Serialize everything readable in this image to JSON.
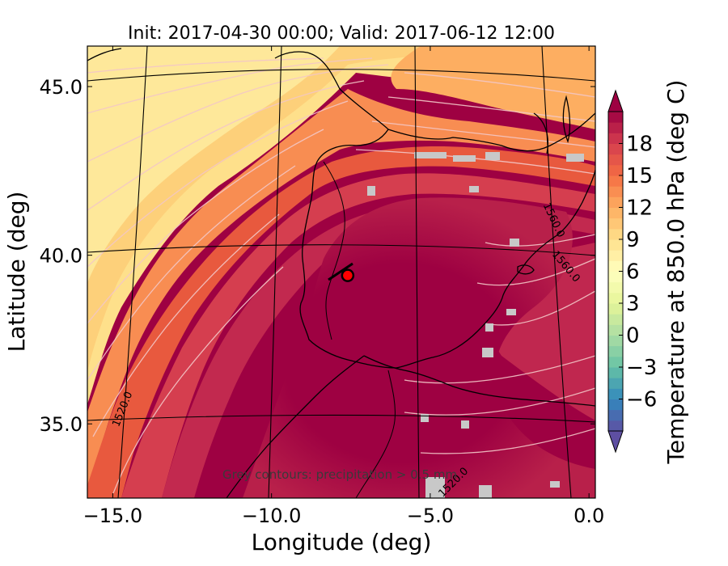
{
  "chart_data": {
    "type": "heatmap",
    "title": "Init: 2017-04-30 00:00; Valid: 2017-06-12 12:00",
    "xlabel": "Longitude (deg)",
    "ylabel": "Latitude (deg)",
    "xlim": [
      -15.8,
      0.2
    ],
    "ylim": [
      32.8,
      46.2
    ],
    "xticks": [
      {
        "value": -15.0,
        "label": "−15.0"
      },
      {
        "value": -10.0,
        "label": "−10.0"
      },
      {
        "value": -5.0,
        "label": "−5.0"
      },
      {
        "value": 0.0,
        "label": "0.0"
      }
    ],
    "yticks": [
      {
        "value": 35.0,
        "label": "35.0"
      },
      {
        "value": 40.0,
        "label": "40.0"
      },
      {
        "value": 45.0,
        "label": "45.0"
      }
    ],
    "colorbar": {
      "label": "Temperature at 850.0 hPa (deg C)",
      "min": -9,
      "max": 21,
      "step": 1,
      "extend": "both",
      "colormap": "Spectral_r",
      "ticks": [
        {
          "value": -6,
          "label": "−6"
        },
        {
          "value": -3,
          "label": "−3"
        },
        {
          "value": 0,
          "label": "0"
        },
        {
          "value": 3,
          "label": "3"
        },
        {
          "value": 6,
          "label": "6"
        },
        {
          "value": 9,
          "label": "9"
        },
        {
          "value": 12,
          "label": "12"
        },
        {
          "value": 15,
          "label": "15"
        },
        {
          "value": 18,
          "label": "18"
        }
      ]
    },
    "contour_labels": [
      {
        "text": "1520.0",
        "lon": -14.6,
        "lat": 35.4,
        "rotate": -68
      },
      {
        "text": "1520.0",
        "lon": -4.2,
        "lat": 33.2,
        "rotate": -45
      },
      {
        "text": "1560.0",
        "lon": -1.2,
        "lat": 41.0,
        "rotate": 65
      },
      {
        "text": "1560.0",
        "lon": -0.8,
        "lat": 39.6,
        "rotate": 50
      }
    ],
    "marker": {
      "lon": -7.6,
      "lat": 39.4,
      "color": "#ff0000"
    },
    "footnote": "Grey contours: precipitation > 0.5 mm"
  }
}
